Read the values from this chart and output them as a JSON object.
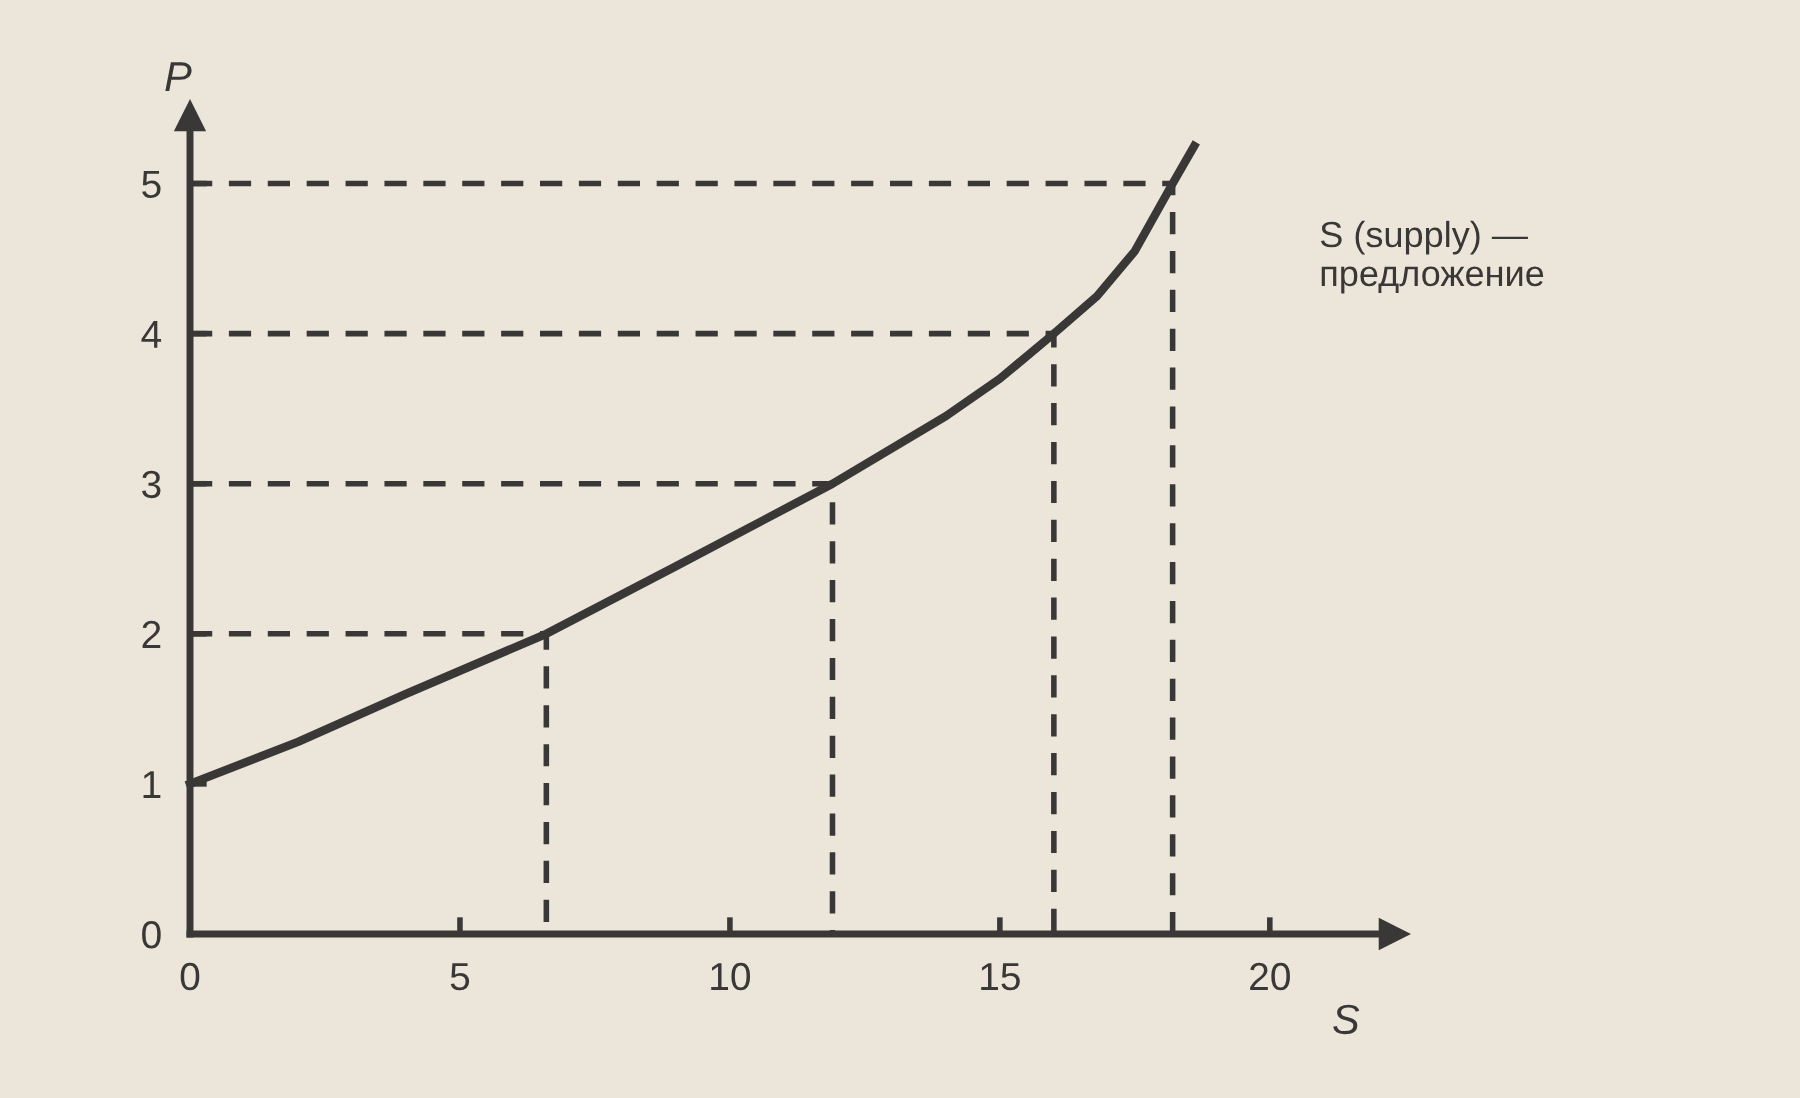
{
  "chart_data": {
    "type": "line",
    "xlabel": "S",
    "ylabel": "P",
    "xlim": [
      0,
      22.3
    ],
    "ylim": [
      0,
      5.45
    ],
    "xticks": [
      0,
      5,
      10,
      15,
      20
    ],
    "yticks": [
      0,
      1,
      2,
      3,
      4,
      5
    ],
    "grid": false,
    "legend": false,
    "marker": "none",
    "series": [
      {
        "name": "S (supply) —\nпредложение",
        "color": "#3a3836",
        "line_style": "solid",
        "x": [
          0,
          2,
          4,
          6.6,
          9,
          11.9,
          14,
          15,
          16,
          16.8,
          17.5,
          18.2,
          18.6
        ],
        "values": [
          1,
          1.28,
          1.6,
          2,
          2.45,
          3,
          3.45,
          3.7,
          4,
          4.25,
          4.55,
          5,
          5.25
        ]
      },
      {
        "color": "#3a3836",
        "line_style": "dashed",
        "x": [
          0,
          6.6,
          6.6
        ],
        "values": [
          2,
          2,
          0
        ]
      },
      {
        "color": "#3a3836",
        "line_style": "dashed",
        "x": [
          0,
          11.9,
          11.9
        ],
        "values": [
          3,
          3,
          0
        ]
      },
      {
        "color": "#3a3836",
        "line_style": "dashed",
        "x": [
          0,
          16,
          16
        ],
        "values": [
          4,
          4,
          0
        ]
      },
      {
        "color": "#3a3836",
        "line_style": "dashed",
        "x": [
          0,
          18.2,
          18.2
        ],
        "values": [
          5,
          5,
          0
        ]
      }
    ]
  }
}
